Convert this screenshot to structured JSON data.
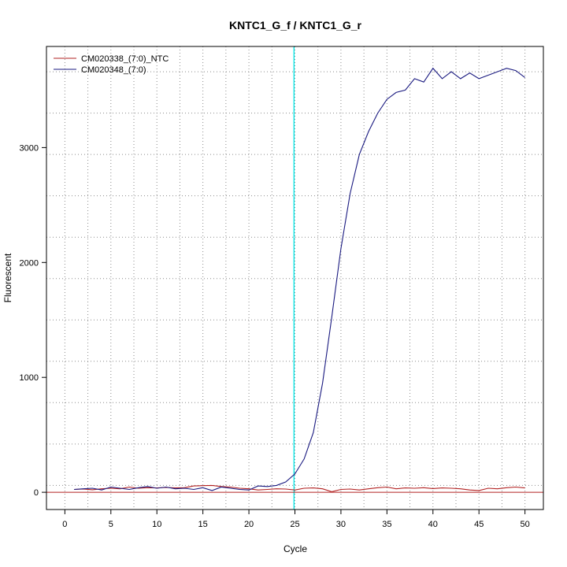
{
  "chart_data": {
    "type": "line",
    "title": "KNTC1_G_f / KNTC1_G_r",
    "xlabel": "Cycle",
    "ylabel": "Fluorescent",
    "xlim": [
      -2,
      52
    ],
    "ylim": [
      -150,
      3880
    ],
    "x_ticks": [
      0,
      5,
      10,
      15,
      20,
      25,
      30,
      35,
      40,
      45,
      50
    ],
    "y_ticks": [
      0,
      1000,
      2000,
      3000
    ],
    "x_grid": [
      0,
      2.5,
      5,
      7.5,
      10,
      12.5,
      15,
      17.5,
      20,
      22.5,
      25,
      27.5,
      30,
      32.5,
      35,
      37.5,
      40,
      42.5,
      45,
      47.5,
      50
    ],
    "y_grid": [
      -300,
      60,
      420,
      780,
      1140,
      1500,
      1860,
      2220,
      2580,
      2940,
      3300,
      3660
    ],
    "grid": true,
    "legend_position": "top-left",
    "threshold_x": 24.9,
    "threshold_color": "#00e5e5",
    "baseline_y": 0,
    "baseline_color": "#b22222",
    "series": [
      {
        "name": "CM020338_(7:0)_NTC",
        "color": "#b22222",
        "x": [
          1,
          2,
          3,
          4,
          5,
          6,
          7,
          8,
          9,
          10,
          11,
          12,
          13,
          14,
          15,
          16,
          17,
          18,
          19,
          20,
          21,
          22,
          23,
          24,
          25,
          26,
          27,
          28,
          29,
          30,
          31,
          32,
          33,
          34,
          35,
          36,
          37,
          38,
          39,
          40,
          41,
          42,
          43,
          44,
          45,
          46,
          47,
          48,
          49,
          50
        ],
        "y": [
          25,
          28,
          22,
          30,
          35,
          30,
          45,
          35,
          40,
          38,
          42,
          38,
          40,
          55,
          58,
          60,
          50,
          45,
          35,
          30,
          20,
          25,
          30,
          28,
          20,
          35,
          38,
          30,
          5,
          25,
          28,
          20,
          30,
          40,
          45,
          30,
          38,
          35,
          40,
          32,
          38,
          35,
          30,
          20,
          15,
          35,
          30,
          40,
          45,
          38
        ]
      },
      {
        "name": "CM020348_(7:0)",
        "color": "#1a1a80",
        "x": [
          1,
          2,
          3,
          4,
          5,
          6,
          7,
          8,
          9,
          10,
          11,
          12,
          13,
          14,
          15,
          16,
          17,
          18,
          19,
          20,
          21,
          22,
          23,
          24,
          25,
          26,
          27,
          28,
          29,
          30,
          31,
          32,
          33,
          34,
          35,
          36,
          37,
          38,
          39,
          40,
          41,
          42,
          43,
          44,
          45,
          46,
          47,
          48,
          49,
          50
        ],
        "y": [
          25,
          30,
          35,
          20,
          45,
          35,
          25,
          40,
          50,
          35,
          45,
          30,
          35,
          25,
          40,
          15,
          45,
          35,
          25,
          20,
          55,
          50,
          60,
          90,
          160,
          290,
          520,
          950,
          1520,
          2120,
          2600,
          2940,
          3140,
          3300,
          3420,
          3480,
          3500,
          3600,
          3570,
          3690,
          3600,
          3660,
          3600,
          3650,
          3600,
          3630,
          3660,
          3690,
          3670,
          3610
        ]
      }
    ]
  }
}
